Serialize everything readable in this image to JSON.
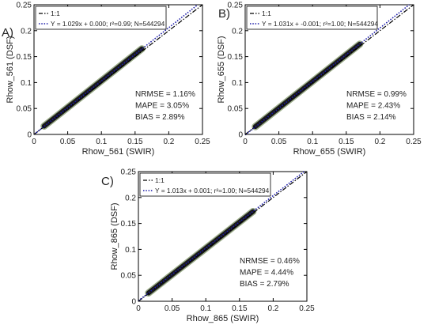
{
  "chart_data": [
    {
      "type": "scatter",
      "panel_label": "A)",
      "xlabel": "Rhow_561 (SWIR)",
      "ylabel": "Rhow_561 (DSF)",
      "xlim": [
        0,
        0.25
      ],
      "ylim": [
        0,
        0.25
      ],
      "xticks": [
        "0",
        "0.05",
        "0.1",
        "0.15",
        "0.2",
        "0.25"
      ],
      "yticks": [
        "0",
        "0.05",
        "0.1",
        "0.15",
        "0.2",
        "0.25"
      ],
      "legend": {
        "position": "top-left",
        "entries": [
          {
            "label": "1:1",
            "style": "dash-dot",
            "color": "#000000"
          },
          {
            "label": "Y = 1.029x + 0.000; r²=0.99; N=544294",
            "style": "dotted",
            "color": "#1a1aa8"
          }
        ]
      },
      "stats": [
        "NRMSE = 1.16%",
        "MAPE = 3.05%",
        "BIAS = 2.89%"
      ],
      "fit": {
        "slope": 1.029,
        "intercept": 0.0
      },
      "x": [
        0.015,
        0.02,
        0.03,
        0.04,
        0.05,
        0.06,
        0.07,
        0.08,
        0.09,
        0.1,
        0.11,
        0.12,
        0.13,
        0.14,
        0.15,
        0.16
      ],
      "y": [
        0.016,
        0.021,
        0.031,
        0.041,
        0.052,
        0.062,
        0.072,
        0.082,
        0.093,
        0.103,
        0.113,
        0.124,
        0.134,
        0.144,
        0.154,
        0.165
      ]
    },
    {
      "type": "scatter",
      "panel_label": "B)",
      "xlabel": "Rhow_655 (SWIR)",
      "ylabel": "Rhow_655 (DSF)",
      "xlim": [
        0,
        0.25
      ],
      "ylim": [
        0,
        0.25
      ],
      "xticks": [
        "0",
        "0.05",
        "0.1",
        "0.15",
        "0.2",
        "0.25"
      ],
      "yticks": [
        "0",
        "0.05",
        "0.1",
        "0.15",
        "0.2",
        "0.25"
      ],
      "legend": {
        "position": "top-left",
        "entries": [
          {
            "label": "1:1",
            "style": "dash-dot",
            "color": "#000000"
          },
          {
            "label": "Y = 1.031x + -0.001; r²=1.00; N=544294",
            "style": "dotted",
            "color": "#1a1aa8"
          }
        ]
      },
      "stats": [
        "NRMSE = 0.99%",
        "MAPE = 2.43%",
        "BIAS = 2.14%"
      ],
      "fit": {
        "slope": 1.031,
        "intercept": -0.001
      },
      "x": [
        0.015,
        0.02,
        0.03,
        0.04,
        0.05,
        0.06,
        0.07,
        0.08,
        0.09,
        0.1,
        0.11,
        0.12,
        0.13,
        0.14,
        0.15,
        0.16,
        0.17
      ],
      "y": [
        0.015,
        0.02,
        0.03,
        0.04,
        0.051,
        0.061,
        0.071,
        0.082,
        0.092,
        0.102,
        0.112,
        0.123,
        0.133,
        0.143,
        0.154,
        0.164,
        0.174
      ]
    },
    {
      "type": "scatter",
      "panel_label": "C)",
      "xlabel": "Rhow_865 (SWIR)",
      "ylabel": "Rhow_865 (DSF)",
      "xlim": [
        0,
        0.25
      ],
      "ylim": [
        0,
        0.25
      ],
      "xticks": [
        "0",
        "0.05",
        "0.1",
        "0.15",
        "0.2",
        "0.25"
      ],
      "yticks": [
        "0",
        "0.05",
        "0.1",
        "0.15",
        "0.2",
        "0.25"
      ],
      "legend": {
        "position": "top-left",
        "entries": [
          {
            "label": "1:1",
            "style": "dash-dot",
            "color": "#000000"
          },
          {
            "label": "Y = 1.013x + 0.001; r²=1.00; N=544294",
            "style": "dotted",
            "color": "#1a1aa8"
          }
        ]
      },
      "stats": [
        "NRMSE = 0.46%",
        "MAPE = 4.44%",
        "BIAS = 2.79%"
      ],
      "fit": {
        "slope": 1.013,
        "intercept": 0.001
      },
      "x": [
        0.015,
        0.02,
        0.03,
        0.04,
        0.05,
        0.06,
        0.07,
        0.08,
        0.09,
        0.1,
        0.11,
        0.12,
        0.13,
        0.14,
        0.15,
        0.16,
        0.17
      ],
      "y": [
        0.016,
        0.021,
        0.031,
        0.041,
        0.052,
        0.062,
        0.072,
        0.082,
        0.092,
        0.102,
        0.112,
        0.123,
        0.133,
        0.143,
        0.153,
        0.163,
        0.173
      ]
    }
  ],
  "colors": {
    "cloud": "#1a1a1a",
    "cloud_edge": "#4a6a2a",
    "fit_line": "#1a1aa8",
    "identity_line": "#000000"
  }
}
